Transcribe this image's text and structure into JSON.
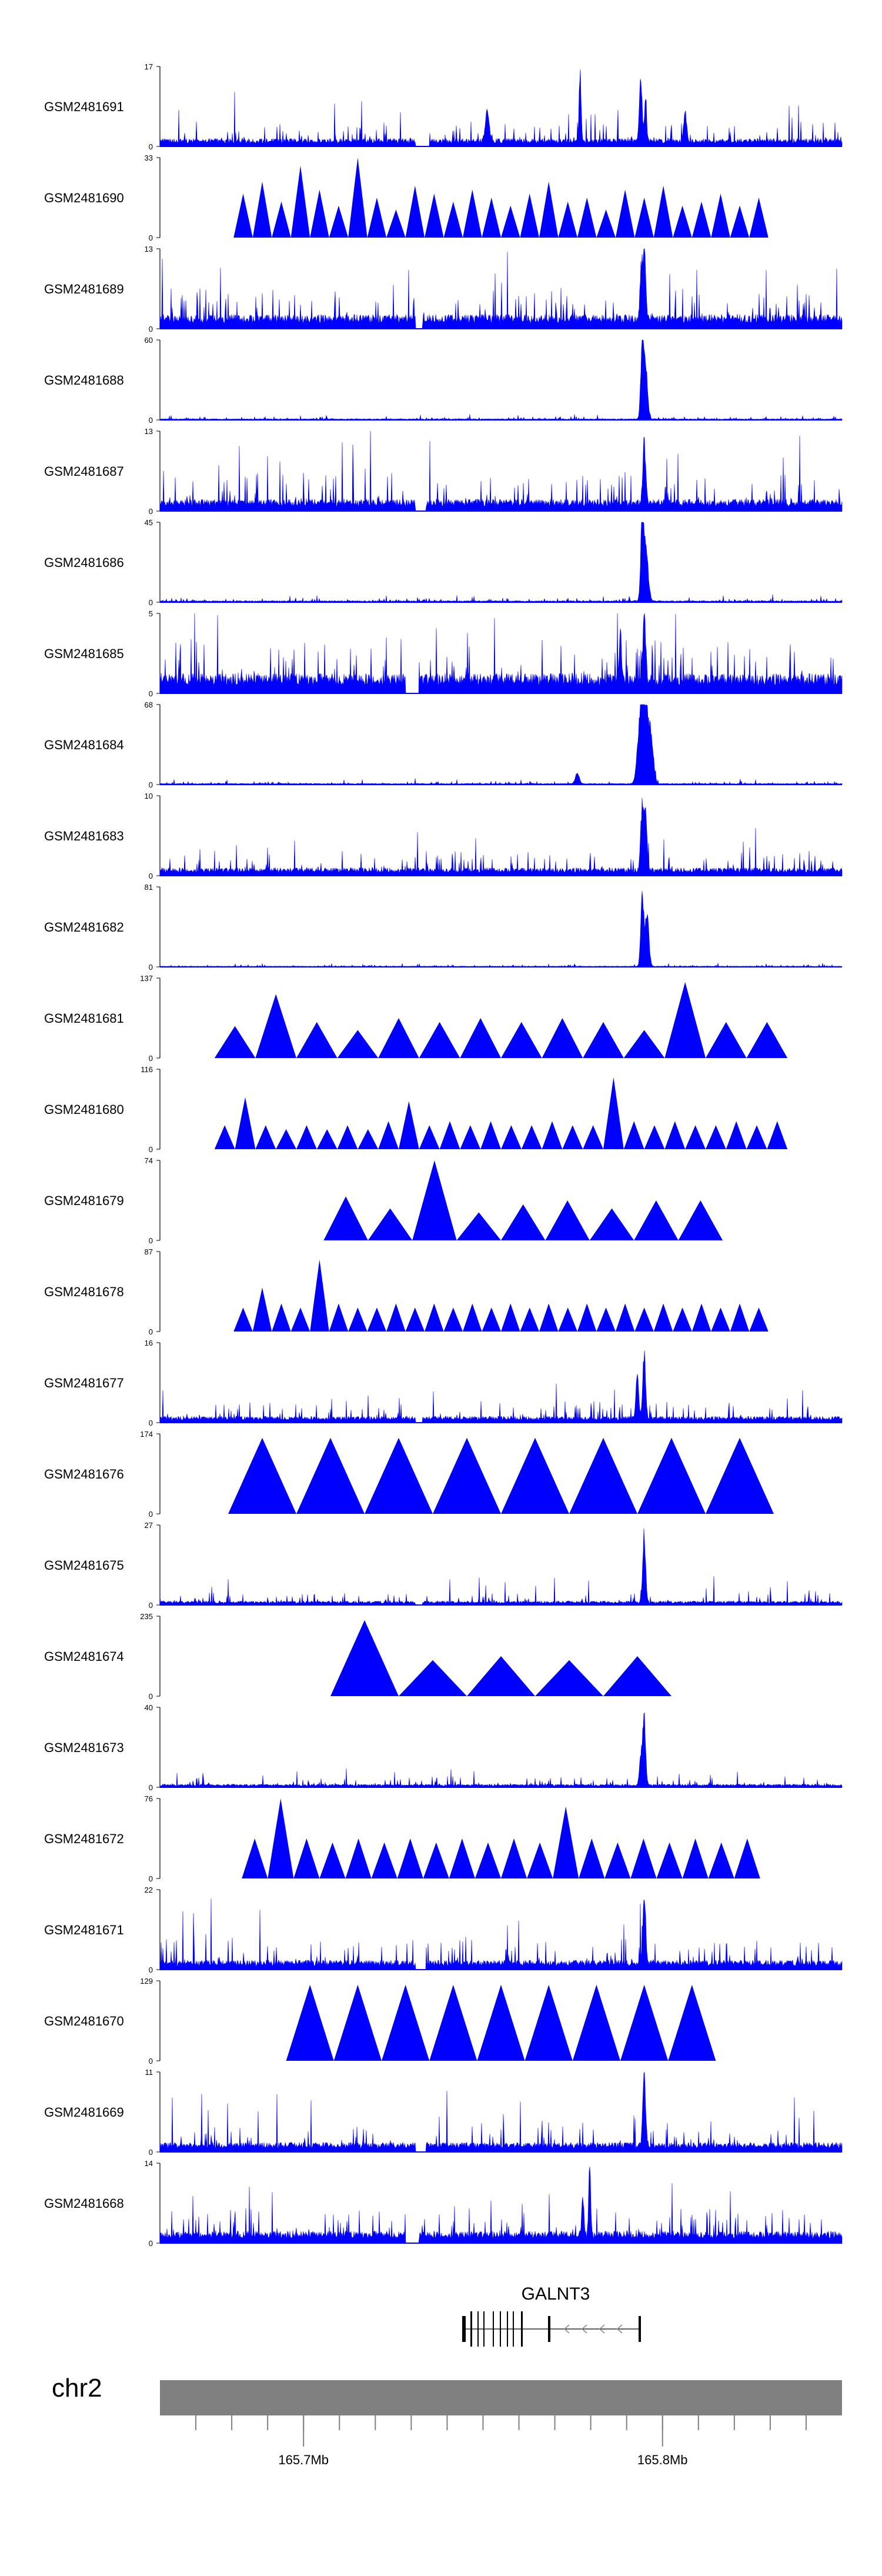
{
  "chart_data": {
    "type": "area",
    "title": "",
    "x_range_mb": [
      165.66,
      165.85
    ],
    "fill_color": "#0000ff",
    "tracks": [
      {
        "name": "GSM2481691",
        "ymax": "17",
        "style": "dense",
        "baseline": 0.1,
        "noise": 0.22,
        "peaks": [
          [
            0.616,
            1.0,
            0.002
          ],
          [
            0.705,
            0.85,
            0.003
          ],
          [
            0.712,
            0.65,
            0.002
          ],
          [
            0.48,
            0.42,
            0.004
          ],
          [
            0.77,
            0.4,
            0.003
          ]
        ],
        "gaps": [
          [
            0.375,
            0.395
          ]
        ]
      },
      {
        "name": "GSM2481690",
        "ymax": "33",
        "style": "tri",
        "period": 0.028,
        "heights": [
          0.55,
          0.7,
          0.45,
          0.9,
          0.6,
          0.4,
          1.0,
          0.5,
          0.35,
          0.65,
          0.55,
          0.45,
          0.6,
          0.5,
          0.4,
          0.55,
          0.7,
          0.45,
          0.5,
          0.35,
          0.6,
          0.5,
          0.65,
          0.4,
          0.45,
          0.55,
          0.4,
          0.5
        ]
      },
      {
        "name": "GSM2481689",
        "ymax": "13",
        "style": "dense",
        "baseline": 0.18,
        "noise": 0.35,
        "peaks": [
          [
            0.71,
            1.0,
            0.003
          ],
          [
            0.705,
            0.7,
            0.002
          ]
        ],
        "gaps": [
          [
            0.375,
            0.385
          ]
        ]
      },
      {
        "name": "GSM2481688",
        "ymax": "60",
        "style": "dense",
        "baseline": 0.015,
        "noise": 0.03,
        "peaks": [
          [
            0.707,
            1.0,
            0.003
          ],
          [
            0.712,
            0.75,
            0.004
          ]
        ],
        "gaps": []
      },
      {
        "name": "GSM2481687",
        "ymax": "13",
        "style": "dense",
        "baseline": 0.15,
        "noise": 0.35,
        "peaks": [
          [
            0.71,
            0.85,
            0.003
          ]
        ],
        "gaps": [
          [
            0.375,
            0.39
          ]
        ]
      },
      {
        "name": "GSM2481686",
        "ymax": "45",
        "style": "dense",
        "baseline": 0.02,
        "noise": 0.04,
        "peaks": [
          [
            0.707,
            1.0,
            0.003
          ],
          [
            0.712,
            0.8,
            0.005
          ]
        ],
        "gaps": []
      },
      {
        "name": "GSM2481685",
        "ymax": "5",
        "style": "dense",
        "baseline": 0.25,
        "noise": 0.45,
        "peaks": [
          [
            0.71,
            0.95,
            0.003
          ],
          [
            0.675,
            0.75,
            0.002
          ]
        ],
        "gaps": [
          [
            0.36,
            0.38
          ]
        ]
      },
      {
        "name": "GSM2481684",
        "ymax": "68",
        "style": "dense",
        "baseline": 0.015,
        "noise": 0.03,
        "peaks": [
          [
            0.705,
            1.0,
            0.006
          ],
          [
            0.712,
            0.9,
            0.006
          ],
          [
            0.72,
            0.6,
            0.005
          ],
          [
            0.612,
            0.15,
            0.004
          ]
        ],
        "gaps": []
      },
      {
        "name": "GSM2481683",
        "ymax": "10",
        "style": "dense",
        "baseline": 0.1,
        "noise": 0.22,
        "peaks": [
          [
            0.707,
            0.9,
            0.003
          ],
          [
            0.712,
            0.75,
            0.003
          ]
        ],
        "gaps": []
      },
      {
        "name": "GSM2481682",
        "ymax": "81",
        "style": "dense",
        "baseline": 0.01,
        "noise": 0.02,
        "peaks": [
          [
            0.707,
            1.0,
            0.003
          ],
          [
            0.714,
            0.7,
            0.004
          ]
        ],
        "gaps": []
      },
      {
        "name": "GSM2481681",
        "ymax": "137",
        "style": "tri",
        "period": 0.06,
        "heights": [
          0.4,
          0.8,
          0.45,
          0.35,
          0.5,
          0.45,
          0.5,
          0.45,
          0.5,
          0.45,
          0.35,
          0.95,
          0.45,
          0.45
        ]
      },
      {
        "name": "GSM2481680",
        "ymax": "116",
        "style": "tri",
        "period": 0.03,
        "heights": [
          0.3,
          0.65,
          0.3,
          0.25,
          0.3,
          0.25,
          0.3,
          0.25,
          0.35,
          0.6,
          0.3,
          0.35,
          0.3,
          0.35,
          0.3,
          0.3,
          0.35,
          0.3,
          0.3,
          0.9,
          0.35,
          0.3,
          0.35,
          0.3,
          0.3,
          0.35,
          0.3,
          0.35
        ]
      },
      {
        "name": "GSM2481679",
        "ymax": "74",
        "style": "tri",
        "period": 0.065,
        "heights": [
          0.0,
          0.55,
          0.4,
          1.0,
          0.35,
          0.45,
          0.5,
          0.4,
          0.5,
          0.5
        ]
      },
      {
        "name": "GSM2481678",
        "ymax": "87",
        "style": "tri",
        "period": 0.028,
        "heights": [
          0.3,
          0.55,
          0.35,
          0.3,
          0.9,
          0.35,
          0.3,
          0.3,
          0.35,
          0.3,
          0.35,
          0.3,
          0.35,
          0.3,
          0.35,
          0.3,
          0.35,
          0.3,
          0.35,
          0.3,
          0.35,
          0.3,
          0.35,
          0.3,
          0.35,
          0.3,
          0.35,
          0.3
        ]
      },
      {
        "name": "GSM2481677",
        "ymax": "16",
        "style": "dense",
        "baseline": 0.08,
        "noise": 0.2,
        "peaks": [
          [
            0.71,
            0.9,
            0.003
          ],
          [
            0.7,
            0.6,
            0.003
          ]
        ],
        "gaps": [
          [
            0.375,
            0.385
          ]
        ]
      },
      {
        "name": "GSM2481676",
        "ymax": "174",
        "style": "tri",
        "period": 0.1,
        "heights": [
          0.95,
          0.95,
          0.95,
          0.95,
          0.95,
          0.95,
          0.95,
          0.95
        ]
      },
      {
        "name": "GSM2481675",
        "ymax": "27",
        "style": "dense",
        "baseline": 0.05,
        "noise": 0.12,
        "peaks": [
          [
            0.71,
            0.9,
            0.003
          ]
        ],
        "gaps": [
          [
            0.375,
            0.385
          ]
        ]
      },
      {
        "name": "GSM2481674",
        "ymax": "235",
        "style": "tri",
        "period": 0.1,
        "heights": [
          0.95,
          0.45,
          0.5,
          0.45,
          0.5
        ]
      },
      {
        "name": "GSM2481673",
        "ymax": "40",
        "style": "dense",
        "baseline": 0.04,
        "noise": 0.1,
        "peaks": [
          [
            0.71,
            0.95,
            0.003
          ],
          [
            0.705,
            0.4,
            0.003
          ]
        ],
        "gaps": []
      },
      {
        "name": "GSM2481672",
        "ymax": "76",
        "style": "tri",
        "period": 0.038,
        "heights": [
          0.5,
          1.0,
          0.5,
          0.45,
          0.5,
          0.45,
          0.5,
          0.45,
          0.5,
          0.45,
          0.5,
          0.45,
          0.9,
          0.5,
          0.45,
          0.5,
          0.45,
          0.5,
          0.45,
          0.5
        ]
      },
      {
        "name": "GSM2481671",
        "ymax": "22",
        "style": "dense",
        "baseline": 0.12,
        "noise": 0.3,
        "peaks": [
          [
            0.71,
            0.95,
            0.003
          ]
        ],
        "gaps": [
          [
            0.375,
            0.39
          ]
        ]
      },
      {
        "name": "GSM2481670",
        "ymax": "129",
        "style": "tri",
        "period": 0.07,
        "heights": [
          0.95,
          0.95,
          0.95,
          0.95,
          0.95,
          0.95,
          0.95,
          0.95,
          0.95
        ]
      },
      {
        "name": "GSM2481669",
        "ymax": "11",
        "style": "dense",
        "baseline": 0.12,
        "noise": 0.25,
        "peaks": [
          [
            0.71,
            0.95,
            0.003
          ]
        ],
        "gaps": [
          [
            0.375,
            0.39
          ]
        ]
      },
      {
        "name": "GSM2481668",
        "ymax": "14",
        "style": "dense",
        "baseline": 0.15,
        "noise": 0.3,
        "peaks": [
          [
            0.63,
            0.95,
            0.002
          ],
          [
            0.62,
            0.6,
            0.002
          ]
        ],
        "gaps": [
          [
            0.36,
            0.38
          ]
        ]
      }
    ],
    "y_axis_min_label": "0",
    "gene": {
      "name": "GALNT3",
      "strand": "-"
    },
    "chromosome": {
      "name": "chr2",
      "tick_labels": [
        "165.7Mb",
        "165.8Mb"
      ],
      "tick_positions_mb": [
        165.7,
        165.8
      ]
    }
  }
}
